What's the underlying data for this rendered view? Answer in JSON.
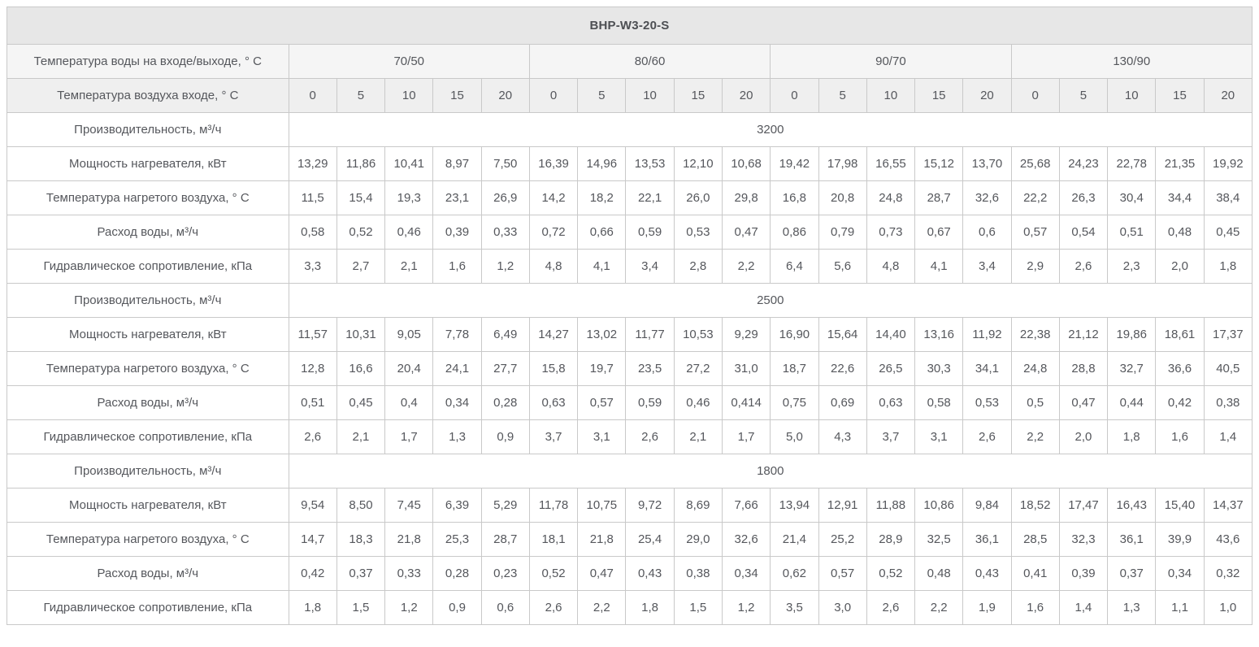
{
  "title": "BHP-W3-20-S",
  "colors": {
    "header_bg": "#e7e7e7",
    "subheader_bg": "#f5f5f5",
    "air_row_bg": "#efefef",
    "border": "#c9c9c9",
    "text": "#55575c"
  },
  "header": {
    "water_temp_label": "Температура воды на входе/выходе, ° C",
    "air_temp_label": "Температура воздуха входе, ° C",
    "water_temps": [
      "70/50",
      "80/60",
      "90/70",
      "130/90"
    ],
    "air_temps": [
      "0",
      "5",
      "10",
      "15",
      "20"
    ]
  },
  "row_labels": {
    "capacity": "Производительность, м³/ч",
    "power": "Мощность нагревателя, кВт",
    "heated_air_temp": "Температура нагретого воздуха, ° C",
    "water_flow": "Расход воды, м³/ч",
    "hydraulic_resistance": "Гидравлическое сопротивление, кПа"
  },
  "blocks": [
    {
      "capacity": "3200",
      "rows": [
        {
          "label": "Мощность нагревателя, кВт",
          "values": [
            "13,29",
            "11,86",
            "10,41",
            "8,97",
            "7,50",
            "16,39",
            "14,96",
            "13,53",
            "12,10",
            "10,68",
            "19,42",
            "17,98",
            "16,55",
            "15,12",
            "13,70",
            "25,68",
            "24,23",
            "22,78",
            "21,35",
            "19,92"
          ]
        },
        {
          "label": "Температура нагретого воздуха, ° C",
          "values": [
            "11,5",
            "15,4",
            "19,3",
            "23,1",
            "26,9",
            "14,2",
            "18,2",
            "22,1",
            "26,0",
            "29,8",
            "16,8",
            "20,8",
            "24,8",
            "28,7",
            "32,6",
            "22,2",
            "26,3",
            "30,4",
            "34,4",
            "38,4"
          ]
        },
        {
          "label": "Расход воды, м³/ч",
          "values": [
            "0,58",
            "0,52",
            "0,46",
            "0,39",
            "0,33",
            "0,72",
            "0,66",
            "0,59",
            "0,53",
            "0,47",
            "0,86",
            "0,79",
            "0,73",
            "0,67",
            "0,6",
            "0,57",
            "0,54",
            "0,51",
            "0,48",
            "0,45"
          ]
        },
        {
          "label": "Гидравлическое сопротивление, кПа",
          "values": [
            "3,3",
            "2,7",
            "2,1",
            "1,6",
            "1,2",
            "4,8",
            "4,1",
            "3,4",
            "2,8",
            "2,2",
            "6,4",
            "5,6",
            "4,8",
            "4,1",
            "3,4",
            "2,9",
            "2,6",
            "2,3",
            "2,0",
            "1,8"
          ]
        }
      ]
    },
    {
      "capacity": "2500",
      "rows": [
        {
          "label": "Мощность нагревателя, кВт",
          "values": [
            "11,57",
            "10,31",
            "9,05",
            "7,78",
            "6,49",
            "14,27",
            "13,02",
            "11,77",
            "10,53",
            "9,29",
            "16,90",
            "15,64",
            "14,40",
            "13,16",
            "11,92",
            "22,38",
            "21,12",
            "19,86",
            "18,61",
            "17,37"
          ]
        },
        {
          "label": "Температура нагретого воздуха, ° C",
          "values": [
            "12,8",
            "16,6",
            "20,4",
            "24,1",
            "27,7",
            "15,8",
            "19,7",
            "23,5",
            "27,2",
            "31,0",
            "18,7",
            "22,6",
            "26,5",
            "30,3",
            "34,1",
            "24,8",
            "28,8",
            "32,7",
            "36,6",
            "40,5"
          ]
        },
        {
          "label": "Расход воды, м³/ч",
          "values": [
            "0,51",
            "0,45",
            "0,4",
            "0,34",
            "0,28",
            "0,63",
            "0,57",
            "0,59",
            "0,46",
            "0,414",
            "0,75",
            "0,69",
            "0,63",
            "0,58",
            "0,53",
            "0,5",
            "0,47",
            "0,44",
            "0,42",
            "0,38"
          ]
        },
        {
          "label": "Гидравлическое сопротивление, кПа",
          "values": [
            "2,6",
            "2,1",
            "1,7",
            "1,3",
            "0,9",
            "3,7",
            "3,1",
            "2,6",
            "2,1",
            "1,7",
            "5,0",
            "4,3",
            "3,7",
            "3,1",
            "2,6",
            "2,2",
            "2,0",
            "1,8",
            "1,6",
            "1,4"
          ]
        }
      ]
    },
    {
      "capacity": "1800",
      "rows": [
        {
          "label": "Мощность нагревателя, кВт",
          "values": [
            "9,54",
            "8,50",
            "7,45",
            "6,39",
            "5,29",
            "11,78",
            "10,75",
            "9,72",
            "8,69",
            "7,66",
            "13,94",
            "12,91",
            "11,88",
            "10,86",
            "9,84",
            "18,52",
            "17,47",
            "16,43",
            "15,40",
            "14,37"
          ]
        },
        {
          "label": "Температура нагретого воздуха, ° C",
          "values": [
            "14,7",
            "18,3",
            "21,8",
            "25,3",
            "28,7",
            "18,1",
            "21,8",
            "25,4",
            "29,0",
            "32,6",
            "21,4",
            "25,2",
            "28,9",
            "32,5",
            "36,1",
            "28,5",
            "32,3",
            "36,1",
            "39,9",
            "43,6"
          ]
        },
        {
          "label": "Расход воды, м³/ч",
          "values": [
            "0,42",
            "0,37",
            "0,33",
            "0,28",
            "0,23",
            "0,52",
            "0,47",
            "0,43",
            "0,38",
            "0,34",
            "0,62",
            "0,57",
            "0,52",
            "0,48",
            "0,43",
            "0,41",
            "0,39",
            "0,37",
            "0,34",
            "0,32"
          ]
        },
        {
          "label": "Гидравлическое сопротивление, кПа",
          "values": [
            "1,8",
            "1,5",
            "1,2",
            "0,9",
            "0,6",
            "2,6",
            "2,2",
            "1,8",
            "1,5",
            "1,2",
            "3,5",
            "3,0",
            "2,6",
            "2,2",
            "1,9",
            "1,6",
            "1,4",
            "1,3",
            "1,1",
            "1,0"
          ]
        }
      ]
    }
  ]
}
